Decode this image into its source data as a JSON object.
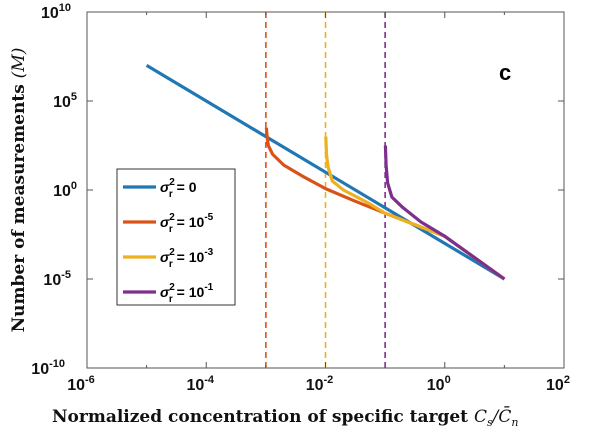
{
  "chart_data": {
    "type": "line",
    "x_scale": "log",
    "y_scale": "log",
    "xlim_exp": [
      -6,
      2
    ],
    "ylim_exp": [
      -10,
      10
    ],
    "x_ticks": [
      {
        "base": "10",
        "exp": "-6",
        "value_exp": -6
      },
      {
        "base": "10",
        "exp": "-4",
        "value_exp": -4
      },
      {
        "base": "10",
        "exp": "-2",
        "value_exp": -2
      },
      {
        "base": "10",
        "exp": "0",
        "value_exp": 0
      },
      {
        "base": "10",
        "exp": "2",
        "value_exp": 2
      }
    ],
    "y_ticks": [
      {
        "base": "10",
        "exp": "10",
        "value_exp": 10
      },
      {
        "base": "10",
        "exp": "5",
        "value_exp": 5
      },
      {
        "base": "10",
        "exp": "0",
        "value_exp": 0
      },
      {
        "base": "10",
        "exp": "-5",
        "value_exp": -5
      },
      {
        "base": "10",
        "exp": "-10",
        "value_exp": -10
      }
    ],
    "xlabel_prefix": "Normalized concentration of specific target ",
    "xlabel_math": "C",
    "xlabel_math_sub": "s",
    "xlabel_slash": "/",
    "xlabel_math2": "C̄",
    "xlabel_math2_sub": "n",
    "ylabel_prefix": "Number of measurements ",
    "ylabel_math": "(M)",
    "panel_label": "c",
    "legend_position": "center-left",
    "grid": false,
    "series": [
      {
        "name_sigma": "σ",
        "name_sub": "r",
        "name_sup": "2",
        "name_eq": " = ",
        "name_base": "0",
        "name_exp": "",
        "color": "#1f77b4",
        "points": [
          [
            1e-05,
            10000000
          ],
          [
            10,
            1e-05
          ]
        ]
      },
      {
        "name_sigma": "σ",
        "name_sub": "r",
        "name_sup": "2",
        "name_eq": " = ",
        "name_base": "10",
        "name_exp": "-5",
        "color": "#d95319",
        "asymptote_x": 0.001,
        "points": [
          [
            0.00102,
            3162
          ],
          [
            0.00105,
            1000
          ],
          [
            0.0011,
            316
          ],
          [
            0.0013,
            100
          ],
          [
            0.002,
            25
          ],
          [
            0.004,
            6.3
          ],
          [
            0.01,
            1.2
          ],
          [
            0.03,
            0.25
          ],
          [
            0.1,
            0.05
          ],
          [
            1,
            0.0025
          ],
          [
            10,
            1e-05
          ]
        ]
      },
      {
        "name_sigma": "σ",
        "name_sub": "r",
        "name_sup": "2",
        "name_eq": " = ",
        "name_base": "10",
        "name_exp": "-3",
        "color": "#edb120",
        "asymptote_x": 0.01,
        "points": [
          [
            0.0101,
            1000
          ],
          [
            0.0104,
            100
          ],
          [
            0.011,
            20
          ],
          [
            0.013,
            3.2
          ],
          [
            0.02,
            1
          ],
          [
            0.05,
            0.2
          ],
          [
            0.1,
            0.05
          ],
          [
            1,
            0.0025
          ],
          [
            10,
            1e-05
          ]
        ]
      },
      {
        "name_sigma": "σ",
        "name_sub": "r",
        "name_sup": "2",
        "name_eq": " = ",
        "name_base": "10",
        "name_exp": "-1",
        "color": "#7e2f8e",
        "asymptote_x": 0.1,
        "points": [
          [
            0.101,
            316
          ],
          [
            0.104,
            25
          ],
          [
            0.11,
            2.5
          ],
          [
            0.13,
            0.4
          ],
          [
            0.2,
            0.1
          ],
          [
            0.4,
            0.016
          ],
          [
            1,
            0.0025
          ],
          [
            10,
            1e-05
          ]
        ]
      }
    ]
  }
}
